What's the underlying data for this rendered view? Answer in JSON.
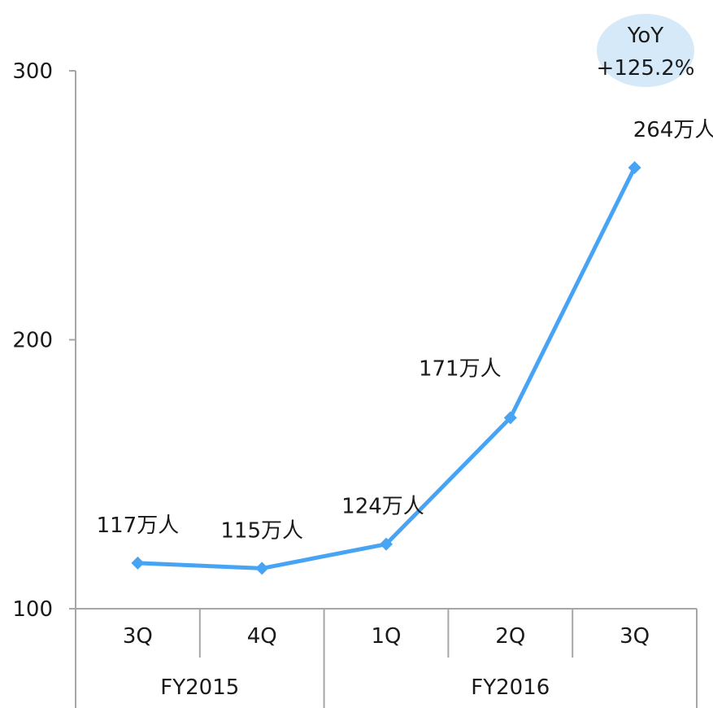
{
  "chart_data": {
    "type": "line",
    "categories": [
      "3Q",
      "4Q",
      "1Q",
      "2Q",
      "3Q"
    ],
    "groups": [
      {
        "label": "FY2015",
        "span": [
          0,
          1
        ]
      },
      {
        "label": "FY2016",
        "span": [
          2,
          4
        ]
      }
    ],
    "series": [
      {
        "values": [
          117,
          115,
          124,
          171,
          264
        ]
      }
    ],
    "data_labels": [
      "117万人",
      "115万人",
      "124万人",
      "171万人",
      "264万人"
    ],
    "yticks": [
      "100",
      "200",
      "300"
    ],
    "ylim": [
      100,
      300
    ],
    "grid": false,
    "annotation": {
      "line1": "YoY",
      "line2": "+125.2%"
    },
    "colors": {
      "line": "#47a3f3",
      "axis": "#a6a6a6",
      "badge": "#d6e9f8"
    }
  }
}
